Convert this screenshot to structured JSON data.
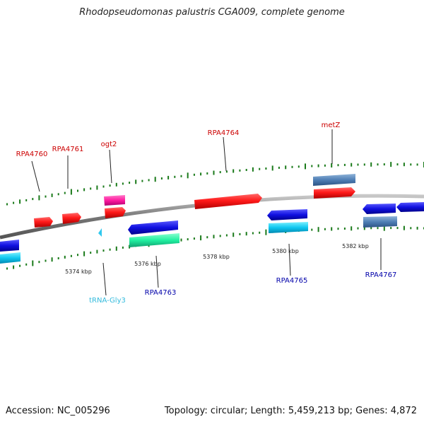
{
  "title": "Rhodopseudomonas palustris CGA009, complete genome",
  "footer": {
    "accession": "Accession: NC_005296",
    "summary": "Topology: circular; Length: 5,459,213 bp; Genes: 4,872"
  },
  "colors": {
    "forward_label": "#cc0000",
    "reverse_label": "#0000aa",
    "trna_label": "#33bbdd",
    "backbone": "#888888",
    "gc_tick": "#1a7a1a"
  },
  "position_labels": [
    "5374 kbp",
    "5376 kbp",
    "5378 kbp",
    "5380 kbp",
    "5382 kbp"
  ],
  "forward_genes": [
    {
      "label": "RPA4760"
    },
    {
      "label": "RPA4761"
    },
    {
      "label": "ogt2"
    },
    {
      "label": "RPA4764"
    },
    {
      "label": "metZ"
    }
  ],
  "reverse_genes": [
    {
      "label": "tRNA-Gly3"
    },
    {
      "label": "RPA4763"
    },
    {
      "label": "RPA4765"
    },
    {
      "label": "RPA4767"
    }
  ]
}
